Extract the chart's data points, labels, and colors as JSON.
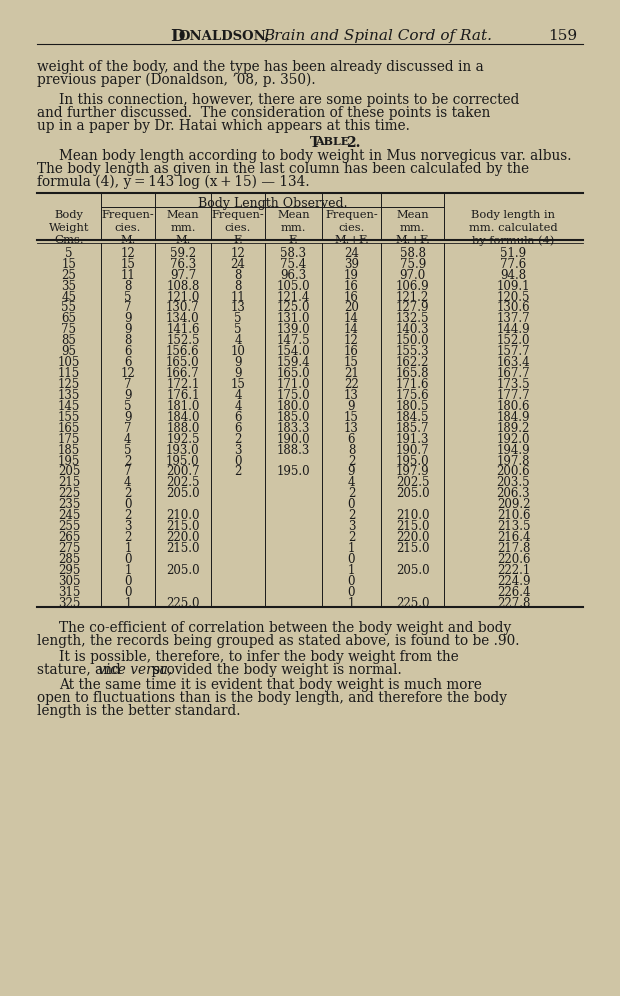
{
  "bg_color": "#cfc5a5",
  "text_color": "#1a1a1a",
  "rows": [
    [
      5,
      12,
      "59.2",
      12,
      "58.3",
      24,
      "58.8",
      "51.9"
    ],
    [
      15,
      15,
      "76.3",
      24,
      "75.4",
      39,
      "75.9",
      "77.6"
    ],
    [
      25,
      11,
      "97.7",
      8,
      "96.3",
      19,
      "97.0",
      "94.8"
    ],
    [
      35,
      8,
      "108.8",
      8,
      "105.0",
      16,
      "106.9",
      "109.1"
    ],
    [
      45,
      5,
      "121.0",
      11,
      "121.4",
      16,
      "121.2",
      "120.5"
    ],
    [
      55,
      7,
      "130.7",
      13,
      "125.0",
      20,
      "127.9",
      "130.6"
    ],
    [
      65,
      9,
      "134.0",
      5,
      "131.0",
      14,
      "132.5",
      "137.7"
    ],
    [
      75,
      9,
      "141.6",
      5,
      "139.0",
      14,
      "140.3",
      "144.9"
    ],
    [
      85,
      8,
      "152.5",
      4,
      "147.5",
      12,
      "150.0",
      "152.0"
    ],
    [
      95,
      6,
      "156.6",
      10,
      "154.0",
      16,
      "155.3",
      "157.7"
    ],
    [
      105,
      6,
      "165.0",
      9,
      "159.4",
      15,
      "162.2",
      "163.4"
    ],
    [
      115,
      12,
      "166.7",
      9,
      "165.0",
      21,
      "165.8",
      "167.7"
    ],
    [
      125,
      7,
      "172.1",
      15,
      "171.0",
      22,
      "171.6",
      "173.5"
    ],
    [
      135,
      9,
      "176.1",
      4,
      "175.0",
      13,
      "175.6",
      "177.7"
    ],
    [
      145,
      5,
      "181.0",
      4,
      "180.0",
      9,
      "180.5",
      "180.6"
    ],
    [
      155,
      9,
      "184.0",
      6,
      "185.0",
      15,
      "184.5",
      "184.9"
    ],
    [
      165,
      7,
      "188.0",
      6,
      "183.3",
      13,
      "185.7",
      "189.2"
    ],
    [
      175,
      4,
      "192.5",
      2,
      "190.0",
      6,
      "191.3",
      "192.0"
    ],
    [
      185,
      5,
      "193.0",
      3,
      "188.3",
      8,
      "190.7",
      "194.9"
    ],
    [
      195,
      2,
      "195.0",
      0,
      "",
      2,
      "195.0",
      "197.8"
    ],
    [
      205,
      7,
      "200.7",
      2,
      "195.0",
      9,
      "197.9",
      "200.6"
    ],
    [
      215,
      4,
      "202.5",
      "",
      "",
      4,
      "202.5",
      "203.5"
    ],
    [
      225,
      2,
      "205.0",
      "",
      "",
      2,
      "205.0",
      "206.3"
    ],
    [
      235,
      0,
      "",
      "",
      "",
      0,
      "",
      "209.2"
    ],
    [
      245,
      2,
      "210.0",
      "",
      "",
      2,
      "210.0",
      "210.6"
    ],
    [
      255,
      3,
      "215.0",
      "",
      "",
      3,
      "215.0",
      "213.5"
    ],
    [
      265,
      2,
      "220.0",
      "",
      "",
      2,
      "220.0",
      "216.4"
    ],
    [
      275,
      1,
      "215.0",
      "",
      "",
      1,
      "215.0",
      "217.8"
    ],
    [
      285,
      0,
      "",
      "",
      "",
      0,
      "",
      "220.6"
    ],
    [
      295,
      1,
      "205.0",
      "",
      "",
      1,
      "205.0",
      "222.1"
    ],
    [
      305,
      0,
      "",
      "",
      "",
      0,
      "",
      "224.9"
    ],
    [
      315,
      0,
      "",
      "",
      "",
      0,
      "",
      "226.4"
    ],
    [
      325,
      1,
      "225.0",
      "",
      "",
      1,
      "225.0",
      "227.8"
    ]
  ]
}
